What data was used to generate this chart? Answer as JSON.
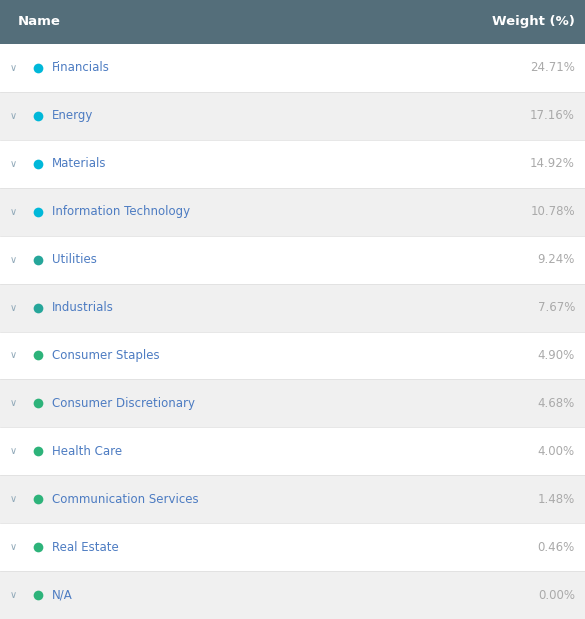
{
  "header_bg": "#546e7a",
  "header_text_color": "#ffffff",
  "header_name": "Name",
  "header_weight": "Weight (%)",
  "rows": [
    {
      "name": "Financials",
      "weight": "24.71%",
      "dot_color": "#00b8d9"
    },
    {
      "name": "Energy",
      "weight": "17.16%",
      "dot_color": "#00b8d9"
    },
    {
      "name": "Materials",
      "weight": "14.92%",
      "dot_color": "#00b8d9"
    },
    {
      "name": "Information Technology",
      "weight": "10.78%",
      "dot_color": "#00b8d9"
    },
    {
      "name": "Utilities",
      "weight": "9.24%",
      "dot_color": "#26a69a"
    },
    {
      "name": "Industrials",
      "weight": "7.67%",
      "dot_color": "#26a69a"
    },
    {
      "name": "Consumer Staples",
      "weight": "4.90%",
      "dot_color": "#2db37a"
    },
    {
      "name": "Consumer Discretionary",
      "weight": "4.68%",
      "dot_color": "#2db37a"
    },
    {
      "name": "Health Care",
      "weight": "4.00%",
      "dot_color": "#2db37a"
    },
    {
      "name": "Communication Services",
      "weight": "1.48%",
      "dot_color": "#2db37a"
    },
    {
      "name": "Real Estate",
      "weight": "0.46%",
      "dot_color": "#2db37a"
    },
    {
      "name": "N/A",
      "weight": "0.00%",
      "dot_color": "#2db37a"
    }
  ],
  "row_bg_odd": "#ffffff",
  "row_bg_even": "#f0f0f0",
  "name_text_color": "#4d7cc2",
  "weight_text_color": "#aaaaaa",
  "chevron_color": "#8fa8b8",
  "fig_width": 5.85,
  "fig_height": 6.19
}
